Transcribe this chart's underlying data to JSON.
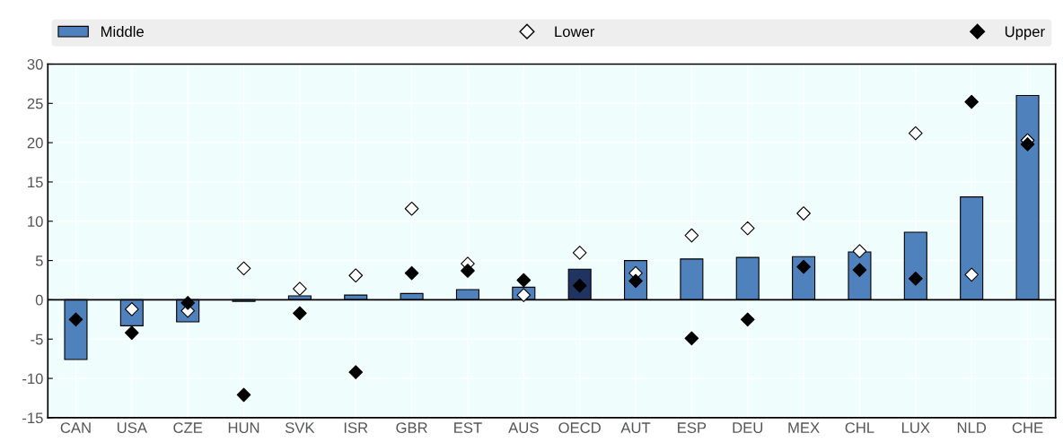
{
  "chart_data": {
    "type": "bar",
    "categories": [
      "CAN",
      "USA",
      "CZE",
      "HUN",
      "SVK",
      "ISR",
      "GBR",
      "EST",
      "AUS",
      "OECD",
      "AUT",
      "ESP",
      "DEU",
      "MEX",
      "CHL",
      "LUX",
      "NLD",
      "CHE"
    ],
    "series": [
      {
        "name": "Middle",
        "color": "#4f81bd",
        "colors": [
          "#4f81bd",
          "#4f81bd",
          "#4f81bd",
          "#4f81bd",
          "#4f81bd",
          "#4f81bd",
          "#4f81bd",
          "#4f81bd",
          "#4f81bd",
          "#1f3461",
          "#4f81bd",
          "#4f81bd",
          "#4f81bd",
          "#4f81bd",
          "#4f81bd",
          "#4f81bd",
          "#4f81bd",
          "#4f81bd"
        ],
        "values": [
          -7.6,
          -3.3,
          -2.8,
          -0.2,
          0.5,
          0.6,
          0.8,
          1.3,
          1.6,
          3.9,
          5.0,
          5.2,
          5.4,
          5.5,
          6.1,
          8.6,
          13.1,
          26.0
        ]
      },
      {
        "name": "Lower",
        "type": "scatter",
        "marker": "diamond",
        "color": "#ffffff",
        "values": [
          null,
          -1.2,
          -1.4,
          4.0,
          1.4,
          3.1,
          11.6,
          4.6,
          0.6,
          6.0,
          3.4,
          8.2,
          9.1,
          11.0,
          6.2,
          21.2,
          3.2,
          20.3
        ]
      },
      {
        "name": "Upper",
        "type": "scatter",
        "marker": "diamond",
        "color": "#000000",
        "values": [
          -2.5,
          -4.2,
          -0.4,
          -12.1,
          -1.7,
          -9.2,
          3.4,
          3.7,
          2.5,
          1.8,
          2.4,
          -4.9,
          -2.5,
          4.2,
          3.8,
          2.7,
          25.2,
          19.8
        ]
      }
    ],
    "ylim": [
      -15,
      30
    ],
    "yticks": [
      -15,
      -10,
      -5,
      0,
      5,
      10,
      15,
      20,
      25,
      30
    ],
    "grid": true,
    "legend": "top"
  }
}
